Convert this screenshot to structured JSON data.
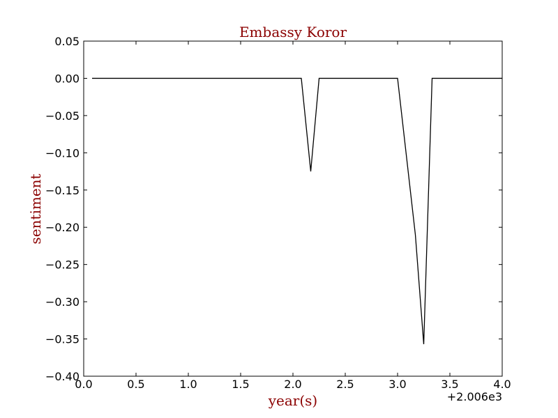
{
  "chart_data": {
    "type": "line",
    "title": "Embassy Koror",
    "xlabel": "year(s)",
    "ylabel": "sentiment",
    "x_offset_label": "+2.006e3",
    "xlim": [
      0.0,
      4.0
    ],
    "ylim": [
      -0.4,
      0.05
    ],
    "x_ticks": [
      0.0,
      0.5,
      1.0,
      1.5,
      2.0,
      2.5,
      3.0,
      3.5,
      4.0
    ],
    "x_tick_labels": [
      "0.0",
      "0.5",
      "1.0",
      "1.5",
      "2.0",
      "2.5",
      "3.0",
      "3.5",
      "4.0"
    ],
    "y_ticks": [
      0.05,
      0.0,
      -0.05,
      -0.1,
      -0.15,
      -0.2,
      -0.25,
      -0.3,
      -0.35,
      -0.4
    ],
    "y_tick_labels": [
      "0.05",
      "0.00",
      "−0.05",
      "−0.10",
      "−0.15",
      "−0.20",
      "−0.25",
      "−0.30",
      "−0.35",
      "−0.40"
    ],
    "grid": false,
    "series": [
      {
        "color": "#000000",
        "x": [
          0.08,
          2.08,
          2.17,
          2.25,
          3.0,
          3.17,
          3.25,
          3.33,
          4.0
        ],
        "y": [
          0.0,
          0.0,
          -0.125,
          0.0,
          0.0,
          -0.21,
          -0.357,
          0.0,
          0.0
        ]
      }
    ]
  }
}
